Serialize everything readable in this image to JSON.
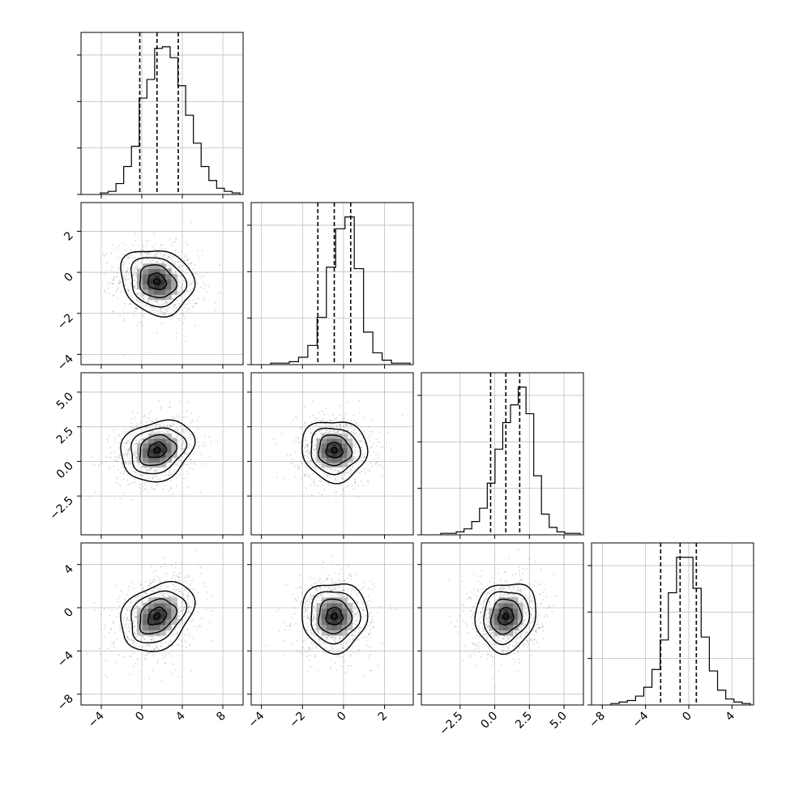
{
  "chart_data": {
    "type": "corner",
    "n_params": 4,
    "quantiles": [
      0.16,
      0.5,
      0.84
    ],
    "grid": true,
    "params": [
      {
        "xlim": [
          -6,
          10
        ],
        "xticks": [
          -4,
          0,
          4,
          8
        ],
        "xtick_labels": [
          "−4",
          "0",
          "4",
          "8"
        ],
        "hist": [
          1,
          2,
          7,
          18,
          31,
          62,
          74,
          94,
          95,
          88,
          70,
          51,
          33,
          18,
          9,
          4,
          2,
          1
        ],
        "hist_max": 95,
        "quantile_values": [
          -0.2,
          1.5,
          3.6
        ]
      },
      {
        "xlim": [
          -4.5,
          3.4
        ],
        "xticks": [
          -4,
          -2,
          0,
          2
        ],
        "xtick_labels": [
          "−4",
          "−2",
          "0",
          "2"
        ],
        "yticks": [
          -4,
          -2,
          0,
          2
        ],
        "ytick_labels": [
          "−4",
          "−2",
          "0",
          "2"
        ],
        "hist": [
          1,
          1,
          2,
          5,
          13,
          32,
          66,
          92,
          100,
          65,
          22,
          8,
          3,
          1,
          1
        ],
        "hist_max": 100,
        "quantile_values": [
          -1.25,
          -0.45,
          0.35
        ]
      },
      {
        "xlim": [
          -5.3,
          6.4
        ],
        "xticks": [
          -2.5,
          0.0,
          2.5,
          5.0
        ],
        "xtick_labels": [
          "−2.5",
          "0.0",
          "2.5",
          "5.0"
        ],
        "yticks": [
          -2.5,
          0.0,
          2.5,
          5.0
        ],
        "ytick_labels": [
          "−2.5",
          "0.0",
          "2.5",
          "5.0"
        ],
        "hist": [
          1,
          1,
          2,
          4,
          9,
          18,
          35,
          58,
          76,
          88,
          100,
          82,
          40,
          14,
          5,
          2,
          1,
          1
        ],
        "hist_max": 100,
        "quantile_values": [
          -0.3,
          0.8,
          1.8
        ]
      },
      {
        "xlim": [
          -9,
          6
        ],
        "xticks": [
          -8,
          -4,
          0,
          4
        ],
        "xtick_labels": [
          "−8",
          "−4",
          "0",
          "4"
        ],
        "yticks": [
          -8,
          -4,
          0,
          4
        ],
        "ytick_labels": [
          "−8",
          "−4",
          "0",
          "4"
        ],
        "hist": [
          1,
          2,
          3,
          6,
          12,
          24,
          44,
          76,
          100,
          100,
          79,
          46,
          23,
          10,
          4,
          2,
          1
        ],
        "hist_max": 100,
        "quantile_values": [
          -2.6,
          -0.8,
          0.7
        ]
      }
    ],
    "pairs": [
      {
        "row": 1,
        "col": 0,
        "mean": [
          1.5,
          -0.45
        ],
        "sd": [
          1.8,
          0.8
        ],
        "rho": -0.15
      },
      {
        "row": 2,
        "col": 0,
        "mean": [
          1.5,
          0.8
        ],
        "sd": [
          1.8,
          1.1
        ],
        "rho": 0.2
      },
      {
        "row": 2,
        "col": 1,
        "mean": [
          -0.45,
          0.8
        ],
        "sd": [
          0.8,
          1.1
        ],
        "rho": -0.05
      },
      {
        "row": 3,
        "col": 0,
        "mean": [
          1.5,
          -0.8
        ],
        "sd": [
          1.8,
          1.6
        ],
        "rho": 0.3
      },
      {
        "row": 3,
        "col": 1,
        "mean": [
          -0.45,
          -0.8
        ],
        "sd": [
          0.8,
          1.6
        ],
        "rho": 0.0
      },
      {
        "row": 3,
        "col": 2,
        "mean": [
          0.8,
          -0.8
        ],
        "sd": [
          1.1,
          1.6
        ],
        "rho": 0.1
      }
    ]
  }
}
